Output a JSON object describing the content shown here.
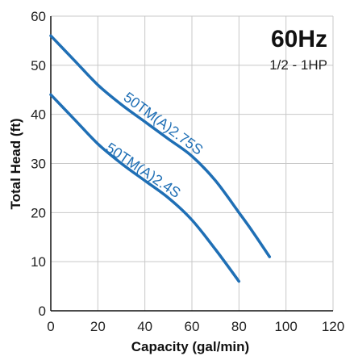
{
  "chart_data": {
    "type": "line",
    "title": "60Hz",
    "subtitle": "1/2 - 1HP",
    "xlabel": "Capacity (gal/min)",
    "ylabel": "Total Head (ft)",
    "xlim": [
      0,
      120
    ],
    "ylim": [
      0,
      60
    ],
    "xticks": [
      0,
      20,
      40,
      60,
      80,
      100,
      120
    ],
    "yticks": [
      0,
      10,
      20,
      30,
      40,
      50,
      60
    ],
    "grid": true,
    "line_color": "#1f6fb5",
    "series": [
      {
        "name": "50TM(A)2.75S",
        "x": [
          0,
          10,
          20,
          30,
          40,
          50,
          60,
          70,
          80,
          86,
          93
        ],
        "y": [
          56,
          51,
          46,
          42,
          38.5,
          35,
          31.5,
          26.5,
          20,
          16,
          11
        ]
      },
      {
        "name": "50TM(A)2.4S",
        "x": [
          0,
          10,
          20,
          30,
          40,
          50,
          60,
          70,
          80
        ],
        "y": [
          44,
          39,
          34,
          30,
          26.5,
          23,
          18.5,
          12.5,
          6
        ]
      }
    ]
  }
}
